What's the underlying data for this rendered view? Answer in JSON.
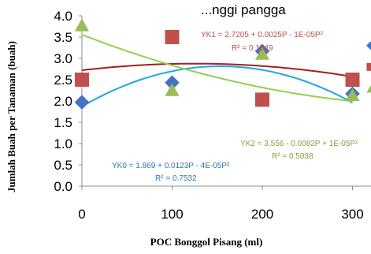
{
  "chart_data": {
    "type": "scatter",
    "title": "...nggi pangga",
    "xlabel": "POC Bonggol Pisang (ml)",
    "ylabel": "Jumlah Buah per Tanaman (buah)",
    "xticks": [
      0,
      100,
      200,
      300
    ],
    "yticks": [
      "0.0",
      "0.5",
      "1.0",
      "1.5",
      "2.0",
      "2.5",
      "3.0",
      "3.5",
      "4.0"
    ],
    "xlim": [
      0,
      320
    ],
    "ylim": [
      0,
      4.0
    ],
    "grid": false,
    "series": [
      {
        "name": "YK0",
        "color": "#4472C4",
        "curve_color": "#1FA8E0",
        "marker": "diamond",
        "x": [
          0,
          100,
          200,
          300,
          320
        ],
        "y": [
          1.97,
          2.43,
          3.17,
          2.17,
          3.3
        ],
        "fit": {
          "a": 1.869,
          "b": 0.0123,
          "c": -4e-05
        },
        "equation": "YK0 = 1.869 + 0.0123P - 4E-05P²",
        "r2": "R² = 0.7532"
      },
      {
        "name": "YK1",
        "color": "#C0504D",
        "curve_color": "#A81F1F",
        "marker": "square",
        "x": [
          0,
          100,
          200,
          300,
          320
        ],
        "y": [
          2.5,
          3.5,
          2.03,
          2.5,
          2.8
        ],
        "fit": {
          "a": 2.7205,
          "b": 0.0025,
          "c": -1e-05
        },
        "equation": "YK1 = 2.7205 + 0.0025P - 1E-05P²",
        "r2": "R² = 0.1549"
      },
      {
        "name": "YK2",
        "color": "#9BBB59",
        "curve_color": "#92D050",
        "marker": "triangle",
        "x": [
          0,
          100,
          200,
          300,
          320
        ],
        "y": [
          3.77,
          2.25,
          3.1,
          2.13,
          2.27
        ],
        "fit": {
          "a": 3.556,
          "b": -0.0082,
          "c": 1e-05
        },
        "equation": "YK2 = 3.556 - 0.0082P + 1E-05P²",
        "r2": "R² = 0.5038"
      }
    ]
  }
}
